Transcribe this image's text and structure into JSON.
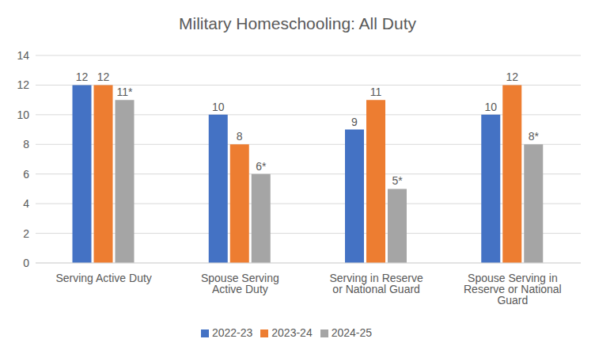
{
  "chart_data": {
    "type": "bar",
    "title": "Military Homeschooling: All Duty",
    "categories": [
      "Serving Active Duty",
      "Spouse Serving Active Duty",
      "Serving in Reserve or National Guard",
      "Spouse Serving in Reserve or National Guard"
    ],
    "series": [
      {
        "name": "2022-23",
        "color": "#4472c4",
        "values": [
          12,
          10,
          9,
          10
        ]
      },
      {
        "name": "2023-24",
        "color": "#ed7d31",
        "values": [
          12,
          8,
          11,
          12
        ]
      },
      {
        "name": "2024-25",
        "color": "#a5a5a5",
        "values": [
          11,
          6,
          5,
          8
        ],
        "value_labels": [
          "11*",
          "6*",
          "5*",
          "8*"
        ]
      }
    ],
    "ylim": [
      0,
      14
    ],
    "yticks": [
      0,
      2,
      4,
      6,
      8,
      10,
      12,
      14
    ],
    "grid": true,
    "legend": "bottom",
    "data_labels": true
  }
}
